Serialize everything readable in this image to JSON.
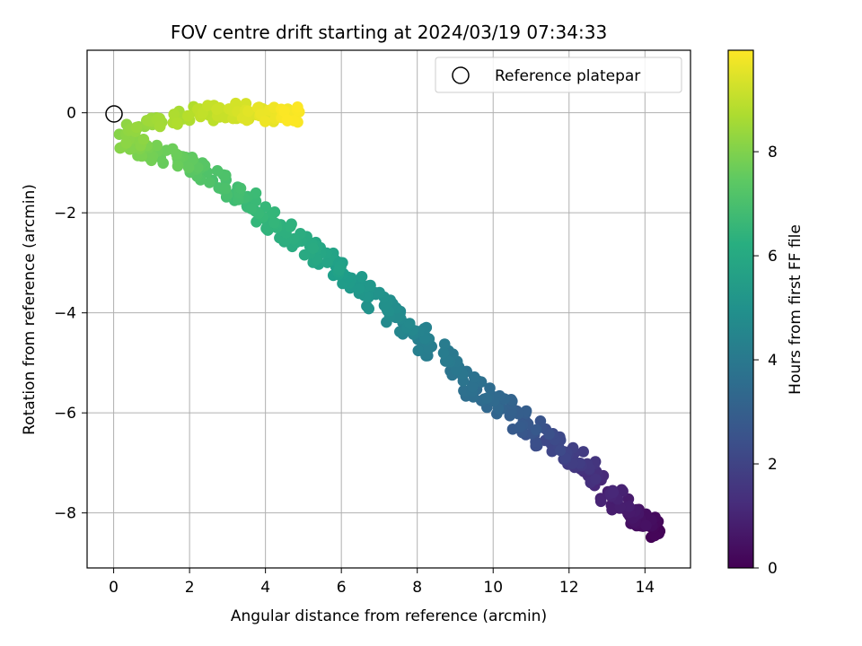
{
  "chart_data": {
    "type": "scatter",
    "title": "FOV centre drift starting at 2024/03/19 07:34:33",
    "xlabel": "Angular distance from reference (arcmin)",
    "ylabel": "Rotation from reference (arcmin)",
    "xlim": [
      -0.7,
      15.2
    ],
    "ylim": [
      -9.1,
      1.25
    ],
    "xticks": [
      0,
      2,
      4,
      6,
      8,
      10,
      12,
      14
    ],
    "yticks": [
      0,
      -2,
      -4,
      -6,
      -8
    ],
    "grid": true,
    "legend": {
      "position": "top-right",
      "entries": [
        "Reference platepar"
      ]
    },
    "reference_point": {
      "x": 0,
      "y": 0,
      "label": "Reference platepar"
    },
    "colorbar": {
      "label": "Hours from first FF file",
      "colormap": "viridis",
      "range": [
        0,
        9.95
      ],
      "ticks": [
        0,
        2,
        4,
        6,
        8
      ]
    },
    "trend": [
      {
        "t": 0.0,
        "x": 14.3,
        "y": -8.4
      },
      {
        "t": 0.3,
        "x": 14.0,
        "y": -8.2
      },
      {
        "t": 0.6,
        "x": 13.6,
        "y": -8.0
      },
      {
        "t": 0.9,
        "x": 13.2,
        "y": -7.7
      },
      {
        "t": 1.3,
        "x": 12.7,
        "y": -7.3
      },
      {
        "t": 1.7,
        "x": 12.2,
        "y": -7.0
      },
      {
        "t": 2.1,
        "x": 11.7,
        "y": -6.7
      },
      {
        "t": 2.5,
        "x": 11.2,
        "y": -6.4
      },
      {
        "t": 2.9,
        "x": 10.7,
        "y": -6.1
      },
      {
        "t": 3.3,
        "x": 10.0,
        "y": -5.8
      },
      {
        "t": 3.6,
        "x": 9.5,
        "y": -5.5
      },
      {
        "t": 3.9,
        "x": 9.0,
        "y": -5.1
      },
      {
        "t": 4.2,
        "x": 8.4,
        "y": -4.7
      },
      {
        "t": 4.5,
        "x": 7.9,
        "y": -4.3
      },
      {
        "t": 4.8,
        "x": 7.3,
        "y": -4.0
      },
      {
        "t": 5.1,
        "x": 6.8,
        "y": -3.7
      },
      {
        "t": 5.4,
        "x": 6.3,
        "y": -3.3
      },
      {
        "t": 5.7,
        "x": 5.7,
        "y": -3.0
      },
      {
        "t": 6.0,
        "x": 5.1,
        "y": -2.7
      },
      {
        "t": 6.3,
        "x": 4.5,
        "y": -2.4
      },
      {
        "t": 6.6,
        "x": 3.9,
        "y": -2.0
      },
      {
        "t": 6.9,
        "x": 3.2,
        "y": -1.6
      },
      {
        "t": 7.2,
        "x": 2.5,
        "y": -1.2
      },
      {
        "t": 7.5,
        "x": 1.8,
        "y": -1.0
      },
      {
        "t": 7.8,
        "x": 1.1,
        "y": -0.8
      },
      {
        "t": 8.1,
        "x": 0.4,
        "y": -0.6
      },
      {
        "t": 8.3,
        "x": 0.6,
        "y": -0.3
      },
      {
        "t": 8.6,
        "x": 1.5,
        "y": -0.1
      },
      {
        "t": 8.9,
        "x": 2.3,
        "y": 0.0
      },
      {
        "t": 9.2,
        "x": 3.0,
        "y": 0.05
      },
      {
        "t": 9.5,
        "x": 3.7,
        "y": 0.0
      },
      {
        "t": 9.8,
        "x": 4.4,
        "y": -0.05
      },
      {
        "t": 9.95,
        "x": 4.9,
        "y": -0.05
      }
    ],
    "samples_per_segment": 16,
    "scatter_jitter": {
      "x": 0.28,
      "y": 0.17
    }
  }
}
